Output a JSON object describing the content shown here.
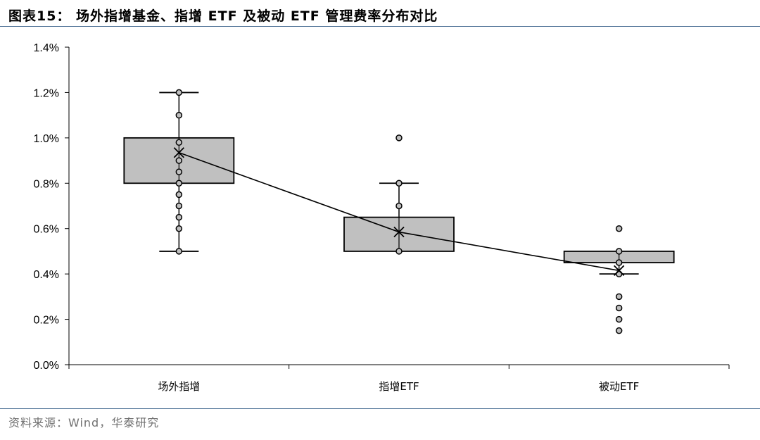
{
  "header": {
    "title": "图表15： 场外指增基金、指增 ETF 及被动 ETF 管理费率分布对比"
  },
  "footer": {
    "source": "资料来源：Wind，华泰研究"
  },
  "colors": {
    "rule": "#4a6f94",
    "box_fill": "#c0c0c0",
    "point_fill": "#bfbfbf",
    "stroke": "#000000"
  },
  "chart_data": {
    "type": "box",
    "title": "",
    "xlabel": "",
    "ylabel": "",
    "ylim": [
      0,
      1.4
    ],
    "yticks": [
      0,
      0.2,
      0.4,
      0.6,
      0.8,
      1.0,
      1.2,
      1.4
    ],
    "ytick_labels": [
      "0.0%",
      "0.2%",
      "0.4%",
      "0.6%",
      "0.8%",
      "1.0%",
      "1.2%",
      "1.4%"
    ],
    "grid": false,
    "categories": [
      "场外指增",
      "指增ETF",
      "被动ETF"
    ],
    "boxes": [
      {
        "q1": 0.8,
        "q3": 1.0,
        "whisker_low": 0.5,
        "whisker_high": 1.2,
        "mean": 0.935,
        "points": [
          1.2,
          1.1,
          0.98,
          0.9,
          0.85,
          0.8,
          0.75,
          0.7,
          0.65,
          0.6,
          0.5
        ]
      },
      {
        "q1": 0.5,
        "q3": 0.65,
        "whisker_low": 0.5,
        "whisker_high": 0.8,
        "mean": 0.585,
        "points": [
          1.0,
          0.8,
          0.7,
          0.5
        ]
      },
      {
        "q1": 0.45,
        "q3": 0.5,
        "whisker_low": 0.4,
        "whisker_high": 0.5,
        "mean": 0.415,
        "points": [
          0.6,
          0.5,
          0.45,
          0.4,
          0.3,
          0.25,
          0.2,
          0.15
        ]
      }
    ]
  }
}
